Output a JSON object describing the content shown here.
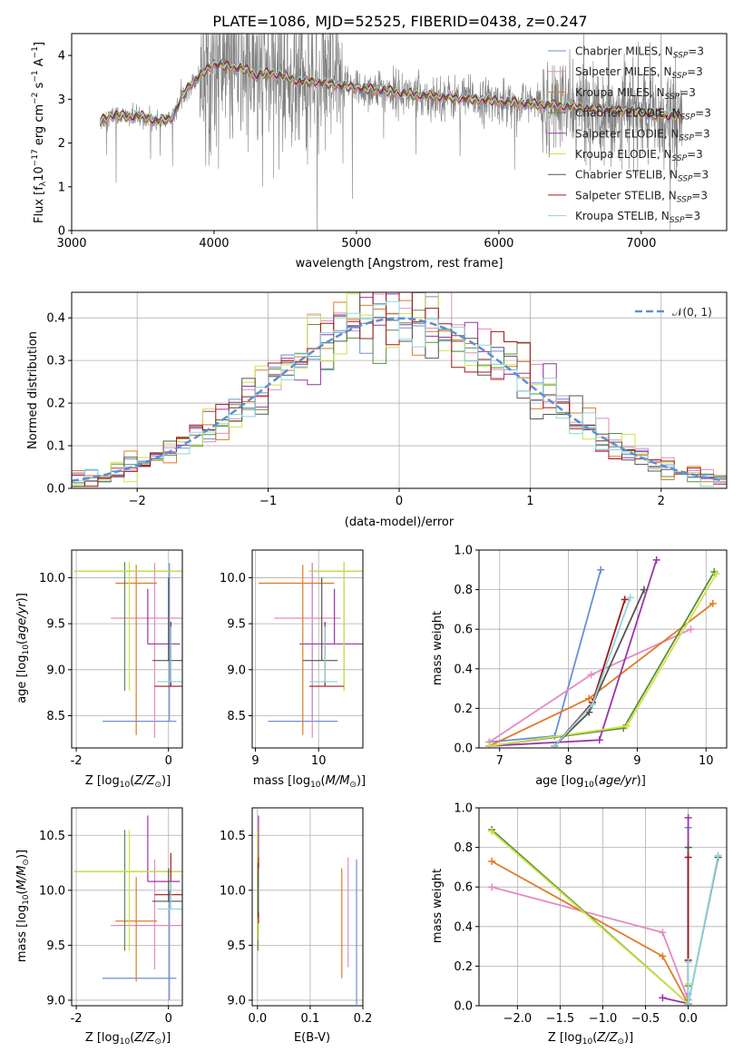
{
  "figure_title": "PLATE=1086, MJD=52525, FIBERID=0438, z=0.247",
  "colors": {
    "Chabrier MILES": "#6a8fd8",
    "Salpeter MILES": "#e58ac2",
    "Kroupa MILES": "#e07b24",
    "Chabrier ELODIE": "#5b8f3a",
    "Salpeter ELODIE": "#9a35a8",
    "Kroupa ELODIE": "#cfe34a",
    "Chabrier STELIB": "#555555",
    "Salpeter STELIB": "#a01818",
    "Kroupa STELIB": "#8fd5dc",
    "data": "#808080",
    "gaussian": "#5b8fd4"
  },
  "chart_data": [
    {
      "id": "spectrum",
      "type": "line",
      "xlabel": "wavelength [Angstrom, rest frame]",
      "ylabel": "Flux [f_λ10^-17 erg cm^-2 s^-1 A^-1]",
      "xlim": [
        3000,
        7600
      ],
      "ylim": [
        0,
        4.5
      ],
      "xticks": [
        3000,
        4000,
        5000,
        6000,
        7000
      ],
      "yticks": [
        0,
        1,
        2,
        3,
        4
      ],
      "legend_position": "upper right",
      "legend": [
        "Chabrier MILES, N_SSP=3",
        "Salpeter MILES, N_SSP=3",
        "Kroupa MILES, N_SSP=3",
        "Chabrier ELODIE, N_SSP=3",
        "Salpeter ELODIE, N_SSP=3",
        "Kroupa ELODIE, N_SSP=3",
        "Chabrier STELIB, N_SSP=3",
        "Salpeter STELIB, N_SSP=3",
        "Kroupa STELIB, N_SSP=3"
      ],
      "model_continuum": {
        "x": [
          3200,
          3300,
          3400,
          3500,
          3600,
          3700,
          3800,
          3900,
          4000,
          4100,
          4200,
          4300,
          4400,
          4500,
          4600,
          4700,
          4800,
          4900,
          5000,
          5200,
          5400,
          5600,
          5800,
          6000,
          6200,
          6400,
          6600,
          6800,
          7000,
          7200
        ],
        "y": [
          2.5,
          2.65,
          2.6,
          2.6,
          2.5,
          2.55,
          3.2,
          3.55,
          3.8,
          3.75,
          3.7,
          3.55,
          3.6,
          3.5,
          3.4,
          3.4,
          3.35,
          3.3,
          3.25,
          3.2,
          3.1,
          3.05,
          3.0,
          2.95,
          2.9,
          2.85,
          2.8,
          2.75,
          2.7,
          2.6
        ]
      }
    },
    {
      "id": "residuals",
      "type": "histogram",
      "xlabel": "(data-model)/error",
      "ylabel": "Normed distribution",
      "xlim": [
        -2.5,
        2.5
      ],
      "ylim": [
        0,
        0.46
      ],
      "xticks": [
        -2,
        -1,
        0,
        1,
        2
      ],
      "yticks": [
        0.0,
        0.1,
        0.2,
        0.3,
        0.4
      ],
      "legend": [
        "𝒩(0, 1)"
      ],
      "legend_position": "upper right",
      "bin_width": 0.1
    },
    {
      "id": "age_vs_Z",
      "type": "errorbar",
      "xlabel": "Z [log10(Z/Z⊙)]",
      "ylabel": "age  [log10(age/yr)]",
      "xlim": [
        -2.1,
        0.3
      ],
      "ylim": [
        8.15,
        10.3
      ],
      "xticks": [
        -2,
        0
      ],
      "yticks": [
        8.5,
        9.0,
        9.5,
        10.0
      ],
      "points": [
        {
          "model": "Chabrier MILES",
          "x": 0.02,
          "xerr": [
            1.45,
            0.15
          ],
          "y": 8.44,
          "yerr": [
            0.0,
            1.72
          ]
        },
        {
          "model": "Salpeter MILES",
          "x": -0.3,
          "xerr": [
            0.95,
            0.65
          ],
          "y": 9.56,
          "yerr": [
            1.3,
            0.6
          ]
        },
        {
          "model": "Kroupa MILES",
          "x": -0.7,
          "xerr": [
            0.45,
            0.45
          ],
          "y": 9.94,
          "yerr": [
            1.65,
            0.2
          ]
        },
        {
          "model": "Chabrier ELODIE",
          "x": -0.95,
          "xerr": [
            1.1,
            1.3
          ],
          "y": 10.07,
          "yerr": [
            1.3,
            0.1
          ]
        },
        {
          "model": "Salpeter ELODIE",
          "x": -0.45,
          "xerr": [
            0.0,
            0.7
          ],
          "y": 9.28,
          "yerr": [
            0.0,
            0.6
          ]
        },
        {
          "model": "Kroupa ELODIE",
          "x": -0.85,
          "xerr": [
            1.2,
            1.2
          ],
          "y": 10.07,
          "yerr": [
            1.3,
            0.1
          ]
        },
        {
          "model": "Chabrier STELIB",
          "x": 0.0,
          "xerr": [
            0.35,
            0.3
          ],
          "y": 9.1,
          "yerr": [
            0.0,
            0.9
          ]
        },
        {
          "model": "Salpeter STELIB",
          "x": 0.05,
          "xerr": [
            0.35,
            0.35
          ],
          "y": 8.82,
          "yerr": [
            0.0,
            0.7
          ]
        },
        {
          "model": "Kroupa STELIB",
          "x": 0.05,
          "xerr": [
            0.3,
            0.25
          ],
          "y": 8.87,
          "yerr": [
            0.0,
            0.6
          ]
        }
      ]
    },
    {
      "id": "age_vs_mass",
      "type": "errorbar",
      "xlabel": "mass [log10(M/M⊙)]",
      "ylabel": "",
      "xlim": [
        8.95,
        10.7
      ],
      "ylim": [
        8.15,
        10.3
      ],
      "xticks": [
        9,
        10
      ],
      "yticks": [
        8.5,
        9.0,
        9.5,
        10.0
      ],
      "points": [
        {
          "model": "Chabrier MILES",
          "x": 9.9,
          "xerr": [
            0.7,
            0.4
          ],
          "y": 8.44,
          "yerr": [
            0.0,
            1.72
          ]
        },
        {
          "model": "Salpeter MILES",
          "x": 9.9,
          "xerr": [
            0.6,
            0.45
          ],
          "y": 9.56,
          "yerr": [
            1.3,
            0.6
          ]
        },
        {
          "model": "Kroupa MILES",
          "x": 9.75,
          "xerr": [
            0.7,
            0.5
          ],
          "y": 9.94,
          "yerr": [
            1.65,
            0.2
          ]
        },
        {
          "model": "Chabrier ELODIE",
          "x": 10.4,
          "xerr": [
            0.55,
            0.3
          ],
          "y": 10.07,
          "yerr": [
            1.3,
            0.1
          ]
        },
        {
          "model": "Salpeter ELODIE",
          "x": 10.25,
          "xerr": [
            0.55,
            0.45
          ],
          "y": 9.28,
          "yerr": [
            0.0,
            0.6
          ]
        },
        {
          "model": "Kroupa ELODIE",
          "x": 10.4,
          "xerr": [
            0.55,
            0.3
          ],
          "y": 10.07,
          "yerr": [
            1.3,
            0.1
          ]
        },
        {
          "model": "Chabrier STELIB",
          "x": 10.05,
          "xerr": [
            0.3,
            0.25
          ],
          "y": 9.1,
          "yerr": [
            0.0,
            0.9
          ]
        },
        {
          "model": "Salpeter STELIB",
          "x": 10.1,
          "xerr": [
            0.25,
            0.3
          ],
          "y": 8.82,
          "yerr": [
            0.0,
            0.7
          ]
        },
        {
          "model": "Kroupa STELIB",
          "x": 10.1,
          "xerr": [
            0.25,
            0.2
          ],
          "y": 8.87,
          "yerr": [
            0.0,
            0.6
          ]
        }
      ]
    },
    {
      "id": "weight_vs_age",
      "type": "line",
      "xlabel": "age  [log10(age/yr)]",
      "ylabel": "mass weight",
      "xlim": [
        6.7,
        10.3
      ],
      "ylim": [
        0,
        1.0
      ],
      "xticks": [
        7,
        8,
        9,
        10
      ],
      "yticks": [
        0.0,
        0.2,
        0.4,
        0.6,
        0.8,
        1.0
      ],
      "series": [
        {
          "model": "Chabrier MILES",
          "x": [
            6.85,
            7.8,
            8.47
          ],
          "y": [
            0.03,
            0.06,
            0.9
          ]
        },
        {
          "model": "Salpeter MILES",
          "x": [
            6.85,
            8.33,
            9.78
          ],
          "y": [
            0.03,
            0.37,
            0.6
          ]
        },
        {
          "model": "Kroupa MILES",
          "x": [
            6.85,
            8.3,
            10.1
          ],
          "y": [
            0.01,
            0.25,
            0.73
          ]
        },
        {
          "model": "Chabrier ELODIE",
          "x": [
            6.85,
            8.8,
            10.12
          ],
          "y": [
            0.01,
            0.1,
            0.89
          ]
        },
        {
          "model": "Salpeter ELODIE",
          "x": [
            6.85,
            8.45,
            9.28
          ],
          "y": [
            0.01,
            0.04,
            0.95
          ]
        },
        {
          "model": "Kroupa ELODIE",
          "x": [
            6.85,
            8.85,
            10.15
          ],
          "y": [
            0.01,
            0.11,
            0.88
          ]
        },
        {
          "model": "Chabrier STELIB",
          "x": [
            7.8,
            8.3,
            9.1
          ],
          "y": [
            0.01,
            0.18,
            0.8
          ]
        },
        {
          "model": "Salpeter STELIB",
          "x": [
            7.8,
            8.35,
            8.82
          ],
          "y": [
            0.01,
            0.23,
            0.75
          ]
        },
        {
          "model": "Kroupa STELIB",
          "x": [
            7.8,
            8.35,
            8.9
          ],
          "y": [
            0.01,
            0.22,
            0.76
          ]
        }
      ]
    },
    {
      "id": "mass_vs_Z",
      "type": "errorbar",
      "xlabel": "Z [log10(Z/Z⊙)]",
      "ylabel": "mass [log10(M/M⊙)]",
      "xlim": [
        -2.1,
        0.3
      ],
      "ylim": [
        8.95,
        10.75
      ],
      "xticks": [
        -2,
        0
      ],
      "yticks": [
        9.0,
        9.5,
        10.0,
        10.5
      ],
      "points": [
        {
          "model": "Chabrier MILES",
          "x": 0.02,
          "xerr": [
            1.45,
            0.15
          ],
          "y": 9.2,
          "yerr": [
            0.2,
            0.8
          ]
        },
        {
          "model": "Salpeter MILES",
          "x": -0.3,
          "xerr": [
            0.95,
            0.65
          ],
          "y": 9.68,
          "yerr": [
            0.4,
            0.6
          ]
        },
        {
          "model": "Kroupa MILES",
          "x": -0.7,
          "xerr": [
            0.45,
            0.45
          ],
          "y": 9.72,
          "yerr": [
            0.55,
            0.4
          ]
        },
        {
          "model": "Chabrier ELODIE",
          "x": -0.95,
          "xerr": [
            1.1,
            1.3
          ],
          "y": 10.17,
          "yerr": [
            0.72,
            0.38
          ]
        },
        {
          "model": "Salpeter ELODIE",
          "x": -0.45,
          "xerr": [
            0.0,
            0.7
          ],
          "y": 10.08,
          "yerr": [
            0.0,
            0.6
          ]
        },
        {
          "model": "Kroupa ELODIE",
          "x": -0.85,
          "xerr": [
            1.2,
            1.2
          ],
          "y": 10.17,
          "yerr": [
            0.72,
            0.38
          ]
        },
        {
          "model": "Chabrier STELIB",
          "x": 0.0,
          "xerr": [
            0.35,
            0.3
          ],
          "y": 9.9,
          "yerr": [
            0.0,
            0.3
          ]
        },
        {
          "model": "Salpeter STELIB",
          "x": 0.05,
          "xerr": [
            0.35,
            0.35
          ],
          "y": 9.96,
          "yerr": [
            0.0,
            0.38
          ]
        },
        {
          "model": "Kroupa STELIB",
          "x": 0.05,
          "xerr": [
            0.3,
            0.25
          ],
          "y": 9.83,
          "yerr": [
            0.0,
            0.25
          ]
        }
      ]
    },
    {
      "id": "mass_vs_ebv",
      "type": "errorbar",
      "xlabel": "E(B-V)",
      "ylabel": "",
      "xlim": [
        -0.01,
        0.2
      ],
      "ylim": [
        8.95,
        10.75
      ],
      "xticks": [
        0.0,
        0.1,
        0.2
      ],
      "yticks": [
        9.0,
        9.5,
        10.0,
        10.5
      ],
      "points": [
        {
          "model": "Chabrier MILES",
          "x": 0.188,
          "xerr": [
            0,
            0
          ],
          "y": 9.66,
          "yerr": [
            0.7,
            0.62
          ]
        },
        {
          "model": "Salpeter MILES",
          "x": 0.172,
          "xerr": [
            0,
            0
          ],
          "y": 9.8,
          "yerr": [
            0.5,
            0.5
          ]
        },
        {
          "model": "Kroupa MILES",
          "x": 0.16,
          "xerr": [
            0,
            0
          ],
          "y": 9.7,
          "yerr": [
            0.5,
            0.5
          ]
        },
        {
          "model": "Chabrier ELODIE",
          "x": 0.001,
          "xerr": [
            0,
            0
          ],
          "y": 10.0,
          "yerr": [
            0.55,
            0.5
          ]
        },
        {
          "model": "Salpeter ELODIE",
          "x": 0.002,
          "xerr": [
            0,
            0
          ],
          "y": 10.2,
          "yerr": [
            0.4,
            0.48
          ]
        },
        {
          "model": "Kroupa ELODIE",
          "x": 0.0,
          "xerr": [
            0,
            0
          ],
          "y": 10.0,
          "yerr": [
            0.45,
            0.55
          ]
        },
        {
          "model": "Chabrier STELIB",
          "x": 0.001,
          "xerr": [
            0,
            0
          ],
          "y": 10.0,
          "yerr": [
            0.25,
            0.25
          ]
        },
        {
          "model": "Salpeter STELIB",
          "x": 0.002,
          "xerr": [
            0,
            0
          ],
          "y": 10.0,
          "yerr": [
            0.3,
            0.3
          ]
        },
        {
          "model": "Kroupa STELIB",
          "x": 0.003,
          "xerr": [
            0,
            0
          ],
          "y": 10.0,
          "yerr": [
            0.2,
            0.2
          ]
        }
      ]
    },
    {
      "id": "weight_vs_Z",
      "type": "line",
      "xlabel": "Z [log10(Z/Z⊙)]",
      "ylabel": "mass weight",
      "xlim": [
        -2.45,
        0.45
      ],
      "ylim": [
        0,
        1.0
      ],
      "xticks": [
        -2.0,
        -1.5,
        -1.0,
        -0.5,
        0.0
      ],
      "yticks": [
        0.0,
        0.2,
        0.4,
        0.6,
        0.8,
        1.0
      ],
      "series": [
        {
          "model": "Chabrier MILES",
          "x": [
            0.0,
            0.0,
            0.0
          ],
          "y": [
            0.03,
            0.06,
            0.9
          ]
        },
        {
          "model": "Salpeter MILES",
          "x": [
            -2.3,
            -0.3,
            0.0
          ],
          "y": [
            0.6,
            0.37,
            0.03
          ]
        },
        {
          "model": "Kroupa MILES",
          "x": [
            -2.3,
            -0.3,
            0.0
          ],
          "y": [
            0.73,
            0.25,
            0.01
          ]
        },
        {
          "model": "Chabrier ELODIE",
          "x": [
            -2.3,
            0.0,
            0.0
          ],
          "y": [
            0.89,
            0.01,
            0.1
          ]
        },
        {
          "model": "Salpeter ELODIE",
          "x": [
            -0.3,
            0.0,
            0.0
          ],
          "y": [
            0.04,
            0.01,
            0.95
          ]
        },
        {
          "model": "Kroupa ELODIE",
          "x": [
            -2.3,
            0.0,
            0.0
          ],
          "y": [
            0.88,
            0.01,
            0.11
          ]
        },
        {
          "model": "Chabrier STELIB",
          "x": [
            0.0,
            0.0,
            0.35
          ],
          "y": [
            0.8,
            0.01,
            0.75
          ]
        },
        {
          "model": "Salpeter STELIB",
          "x": [
            0.0,
            0.0,
            0.0
          ],
          "y": [
            0.23,
            0.01,
            0.75
          ]
        },
        {
          "model": "Kroupa STELIB",
          "x": [
            0.0,
            0.0,
            0.35
          ],
          "y": [
            0.22,
            0.01,
            0.76
          ]
        }
      ]
    }
  ]
}
